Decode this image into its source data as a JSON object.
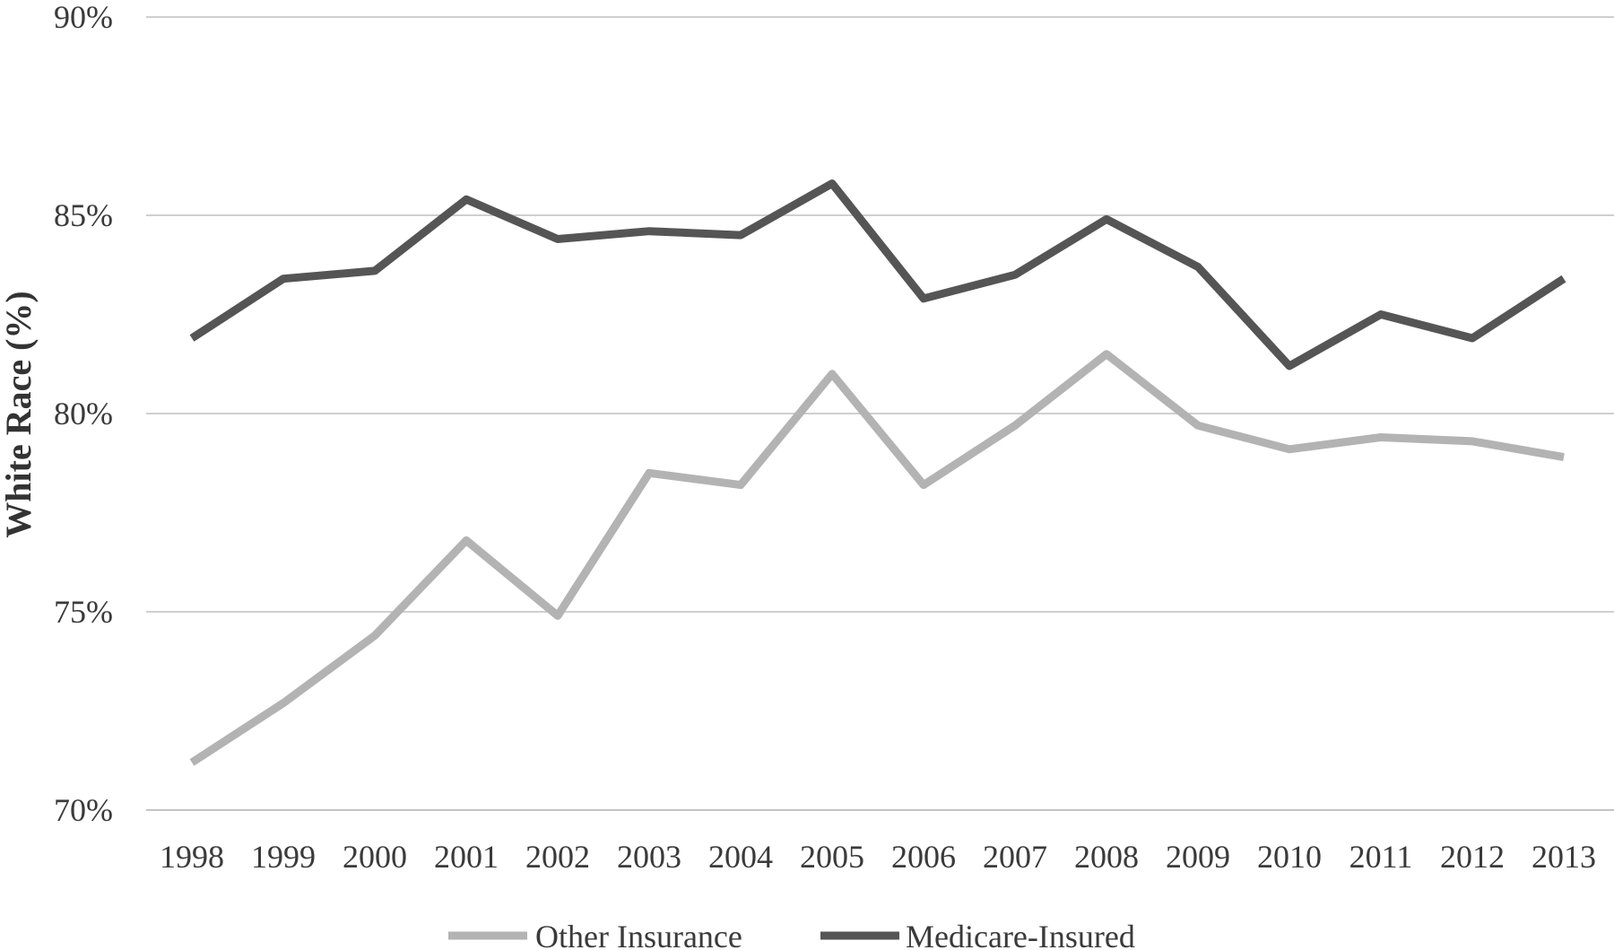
{
  "chart_data": {
    "type": "line",
    "title": "",
    "xlabel": "",
    "ylabel": "White Race (%)",
    "x": [
      "1998",
      "1999",
      "2000",
      "2001",
      "2002",
      "2003",
      "2004",
      "2005",
      "2006",
      "2007",
      "2008",
      "2009",
      "2010",
      "2011",
      "2012",
      "2013"
    ],
    "ylim": [
      70,
      90
    ],
    "yticks": [
      70,
      75,
      80,
      85,
      90
    ],
    "ytick_labels": [
      "70%",
      "75%",
      "80%",
      "85%",
      "90%"
    ],
    "grid": true,
    "legend_position": "bottom",
    "series": [
      {
        "name": "Other Insurance",
        "color": "#b3b3b3",
        "values": [
          71.2,
          72.7,
          74.4,
          76.8,
          74.9,
          78.5,
          78.2,
          81.0,
          78.2,
          79.7,
          81.5,
          79.7,
          79.1,
          79.4,
          79.3,
          78.9
        ]
      },
      {
        "name": "Medicare-Insured",
        "color": "#555555",
        "values": [
          81.9,
          83.4,
          83.6,
          85.4,
          84.4,
          84.6,
          84.5,
          85.8,
          82.9,
          83.5,
          84.9,
          83.7,
          81.2,
          82.5,
          81.9,
          83.4
        ]
      }
    ]
  }
}
